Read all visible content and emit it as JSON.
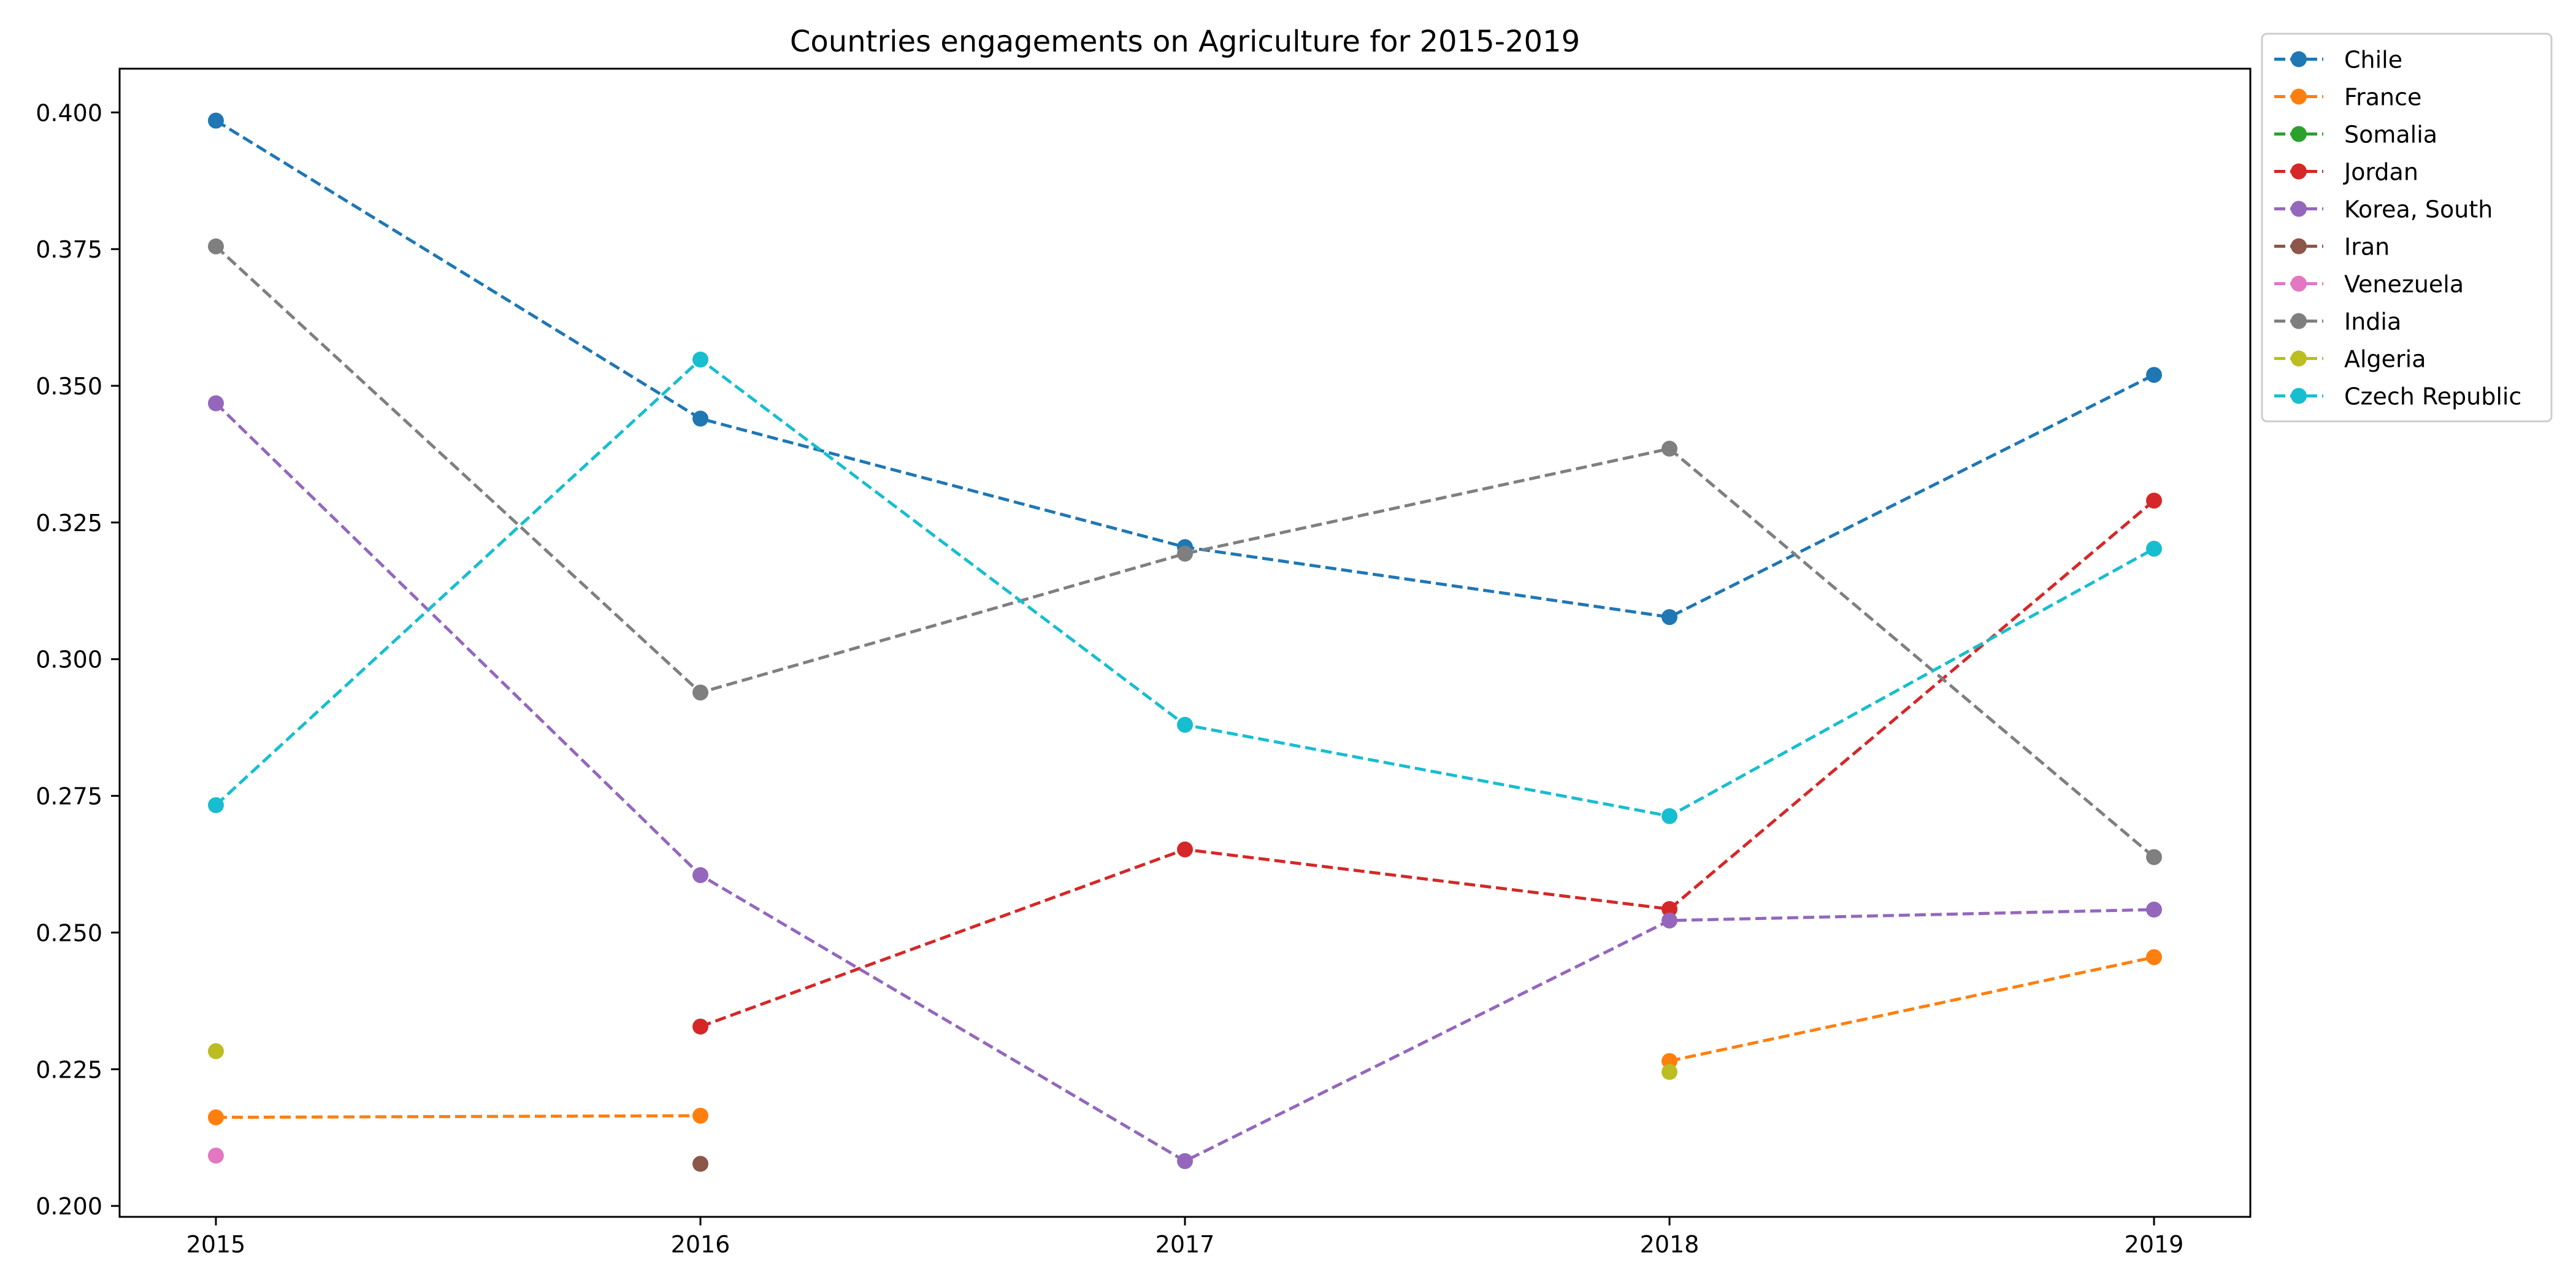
{
  "chart_data": {
    "type": "line",
    "title": "Countries engagements on Agriculture for 2015-2019",
    "xlabel": "",
    "ylabel": "",
    "x": [
      "2015",
      "2016",
      "2017",
      "2018",
      "2019"
    ],
    "ylim": [
      0.198,
      0.408
    ],
    "yticks": [
      0.2,
      0.225,
      0.25,
      0.275,
      0.3,
      0.325,
      0.35,
      0.375,
      0.4
    ],
    "ytick_labels": [
      "0.200",
      "0.225",
      "0.250",
      "0.275",
      "0.300",
      "0.325",
      "0.350",
      "0.375",
      "0.400"
    ],
    "grid": false,
    "legend_position": "outside-top-right",
    "line_style": "dashed",
    "marker": "circle",
    "series": [
      {
        "name": "Chile",
        "color": "#1f77b4",
        "values": [
          0.3985,
          0.344,
          0.3205,
          0.3077,
          0.352
        ]
      },
      {
        "name": "France",
        "color": "#ff7f0e",
        "values": [
          0.2162,
          0.2165,
          null,
          0.2265,
          0.2455
        ]
      },
      {
        "name": "Somalia",
        "color": "#2ca02c",
        "values": [
          null,
          null,
          null,
          null,
          null
        ]
      },
      {
        "name": "Jordan",
        "color": "#d62728",
        "values": [
          null,
          0.2328,
          0.2652,
          0.2543,
          0.329
        ]
      },
      {
        "name": "Korea, South",
        "color": "#9467bd",
        "values": [
          0.3468,
          0.2605,
          0.2082,
          0.2522,
          0.2542
        ]
      },
      {
        "name": "Iran",
        "color": "#8c564b",
        "values": [
          null,
          0.2077,
          null,
          null,
          null
        ]
      },
      {
        "name": "Venezuela",
        "color": "#e377c2",
        "values": [
          0.2092,
          null,
          null,
          null,
          null
        ]
      },
      {
        "name": "India",
        "color": "#7f7f7f",
        "values": [
          0.3755,
          0.2939,
          0.3193,
          0.3385,
          0.2638
        ]
      },
      {
        "name": "Algeria",
        "color": "#bcbd22",
        "values": [
          0.2283,
          null,
          null,
          0.2245,
          null
        ]
      },
      {
        "name": "Czech Republic",
        "color": "#17becf",
        "values": [
          0.2733,
          0.3548,
          0.288,
          0.2713,
          0.3202
        ]
      }
    ]
  }
}
